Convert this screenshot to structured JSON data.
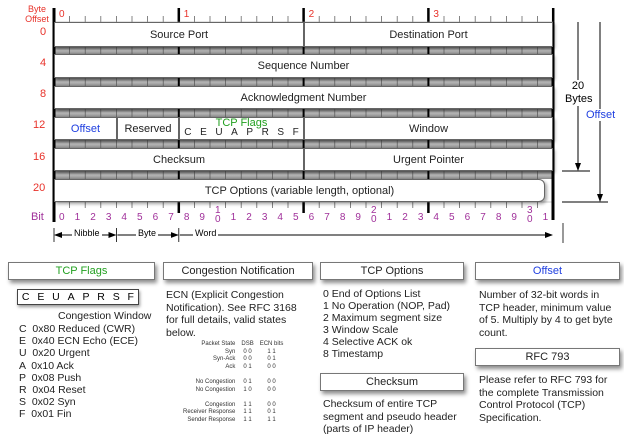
{
  "header": {
    "byte_offset_label": "Byte Offset",
    "byte_numbers": [
      "0",
      "1",
      "2",
      "3"
    ],
    "row_offsets": [
      "0",
      "4",
      "8",
      "12",
      "16",
      "20"
    ],
    "bit_label": "Bit",
    "bit_labels": [
      "0",
      "1",
      "2",
      "3",
      "4",
      "5",
      "6",
      "7",
      "8",
      "9",
      "10",
      "1",
      "2",
      "3",
      "4",
      "5",
      "6",
      "7",
      "8",
      "9",
      "20",
      "1",
      "2",
      "3",
      "4",
      "5",
      "6",
      "7",
      "8",
      "9",
      "30",
      "1"
    ],
    "fields": {
      "source_port": "Source Port",
      "destination_port": "Destination Port",
      "sequence_number": "Sequence Number",
      "ack_number": "Acknowledgment Number",
      "offset": "Offset",
      "reserved": "Reserved",
      "tcp_flags": "TCP Flags",
      "flag_letters": [
        "C",
        "E",
        "U",
        "A",
        "P",
        "R",
        "S",
        "F"
      ],
      "window": "Window",
      "checksum": "Checksum",
      "urgent_pointer": "Urgent Pointer",
      "tcp_options": "TCP Options (variable length, optional)"
    },
    "spans": {
      "nibble": "Nibble",
      "byte": "Byte",
      "word": "Word"
    },
    "right": {
      "size_value": "20",
      "size_unit": "Bytes",
      "offset": "Offset"
    }
  },
  "panels": {
    "tcp_flags": {
      "title": "TCP Flags",
      "letters": [
        "C",
        "E",
        "U",
        "A",
        "P",
        "R",
        "S",
        "F"
      ],
      "caption": "Congestion Window",
      "items": [
        "C  0x80 Reduced (CWR)",
        "E  0x40 ECN Echo (ECE)",
        "U  0x20 Urgent",
        "A  0x10 Ack",
        "P  0x08 Push",
        "R  0x04 Reset",
        "S  0x02 Syn",
        "F  0x01 Fin"
      ]
    },
    "congestion": {
      "title": "Congestion Notification",
      "text": "ECN (Explicit Congestion Notification).  See RFC 3168 for full details, valid states below.",
      "columns": [
        "Packet State",
        "DSB",
        "ECN bits"
      ],
      "rows": [
        [
          "Syn",
          "0 0",
          "1 1"
        ],
        [
          "Syn-Ack",
          "0 0",
          "0 1"
        ],
        [
          "Ack",
          "0 1",
          "0 0"
        ],
        [
          "",
          "",
          ""
        ],
        [
          "No Congestion",
          "0 1",
          "0 0"
        ],
        [
          "No Congestion",
          "1 0",
          "0 0"
        ],
        [
          "",
          "",
          ""
        ],
        [
          "Congestion",
          "1 1",
          "0 0"
        ],
        [
          "Receiver Response",
          "1 1",
          "0 1"
        ],
        [
          "Sender Response",
          "1 1",
          "1 1"
        ]
      ]
    },
    "tcp_options": {
      "title": "TCP Options",
      "items": [
        "0 End of Options List",
        "1 No Operation (NOP, Pad)",
        "2 Maximum segment size",
        "3 Window Scale",
        "4 Selective ACK ok",
        "8 Timestamp"
      ]
    },
    "checksum": {
      "title": "Checksum",
      "text": "Checksum of entire TCP segment and pseudo header (parts of IP header)"
    },
    "offset": {
      "title": "Offset",
      "text": "Number of 32-bit words in TCP header, minimum value of 5.  Multiply by 4 to get byte count."
    },
    "rfc": {
      "title": "RFC 793",
      "text": "Please refer to RFC 793 for the complete Transmission Control Protocol (TCP) Specification."
    }
  },
  "colors": {
    "offset_labels": "#e8322a",
    "bit_labels": "#a0309a",
    "offset_field": "#1f3fe0",
    "flags_title": "#22a020"
  }
}
